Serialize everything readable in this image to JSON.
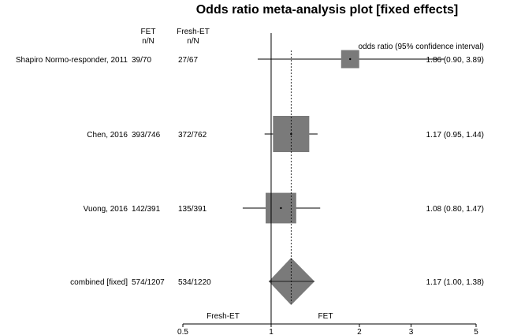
{
  "chart_data": {
    "type": "forest",
    "title": "Odds ratio meta-analysis plot [fixed effects]",
    "columns": {
      "group1": "FET",
      "group2": "Fresh-ET",
      "subheader": "n/N",
      "ci_header": "odds ratio (95% confidence interval)"
    },
    "studies": [
      {
        "name": "Shapiro Normo-responder, 2011",
        "group1": "39/70",
        "group2": "27/67",
        "or": 1.86,
        "lower": 0.9,
        "upper": 3.89,
        "ci_text": "1.86 (0.90, 3.89)",
        "weight": 0.06
      },
      {
        "name": "Chen, 2016",
        "group1": "393/746",
        "group2": "372/762",
        "or": 1.17,
        "lower": 0.95,
        "upper": 1.44,
        "ci_text": "1.17 (0.95, 1.44)",
        "weight": 0.58
      },
      {
        "name": "Vuong, 2016",
        "group1": "142/391",
        "group2": "135/391",
        "or": 1.08,
        "lower": 0.8,
        "upper": 1.47,
        "ci_text": "1.08 (0.80, 1.47)",
        "weight": 0.36
      }
    ],
    "combined": {
      "name": "combined [fixed]",
      "group1": "574/1207",
      "group2": "534/1220",
      "or": 1.17,
      "lower": 1.0,
      "upper": 1.38,
      "ci_text": "1.17 (1.00, 1.38)"
    },
    "x_scale": "log",
    "xlim": [
      0.5,
      5
    ],
    "x_ticks": [
      0.5,
      1,
      2,
      3,
      5
    ],
    "x_tick_labels": [
      "0.5",
      "1",
      "2",
      "3",
      "5"
    ],
    "favours_left": "Fresh-ET",
    "favours_right": "FET",
    "null_value": 1,
    "colors": {
      "box": "#7a7a7a",
      "line": "#000000"
    }
  }
}
